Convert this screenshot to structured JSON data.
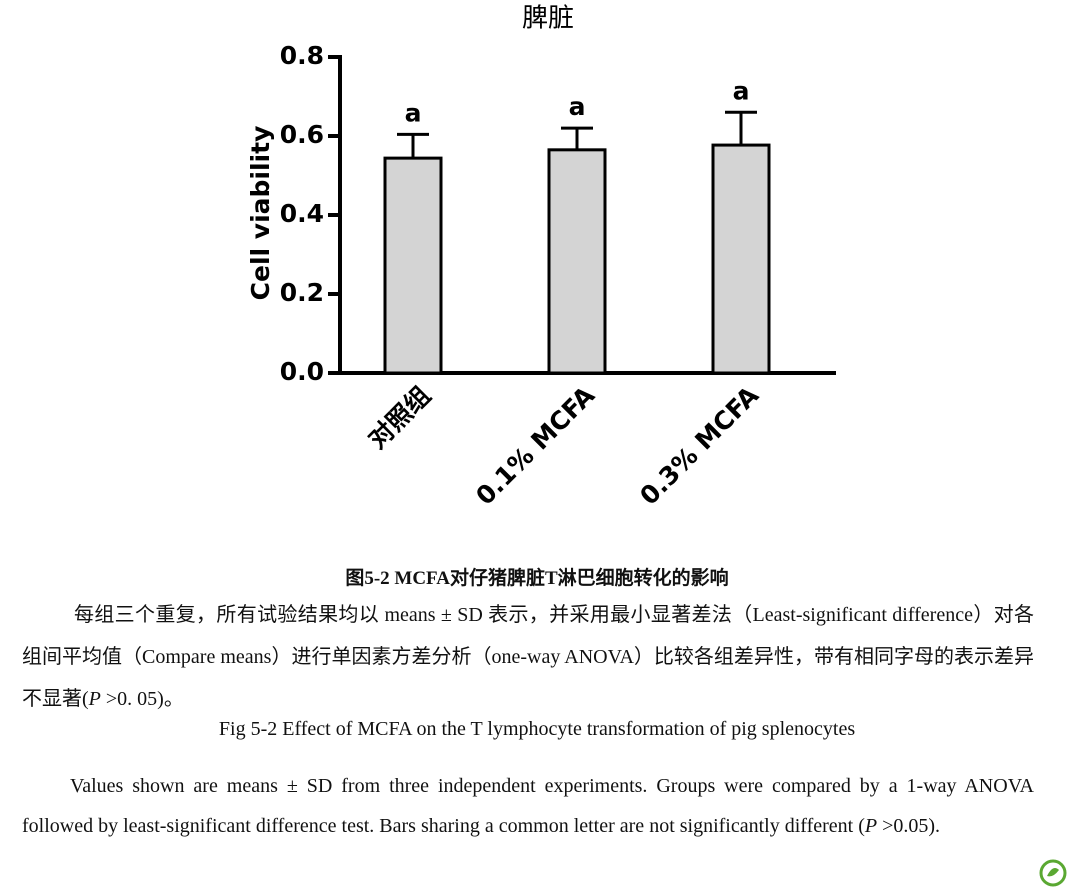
{
  "chart_data": {
    "type": "bar",
    "title": "脾脏",
    "ylabel": "Cell viability",
    "categories": [
      "对照组",
      "0.1% MCFA",
      "0.3% MCFA"
    ],
    "values": [
      0.544,
      0.565,
      0.577
    ],
    "errors": [
      0.06,
      0.055,
      0.083
    ],
    "letters": [
      "a",
      "a",
      "a"
    ],
    "color": "#d4d4d4",
    "ylim": [
      0,
      0.8
    ],
    "yticks": [
      {
        "value": 0,
        "label": "0.0"
      },
      0.2,
      0.4,
      0.6,
      0.8
    ]
  },
  "caption": {
    "cn_title": "图5-2 MCFA对仔猪脾脏T淋巴细胞转化的影响",
    "cn_note": [
      "每组三个重复，所有试验结果均以 means ± SD 表示，并采用最小显著差法（Least-significant difference）对各组间平均值（Compare means）进行单因素方差分析（one-way ANOVA）比较各组差异性，带有相同字母的表示差异不显著(",
      "P",
      " >0. 05)。"
    ],
    "en_title": "Fig 5-2 Effect of MCFA on the T lymphocyte transformation of pig splenocytes",
    "en_note": [
      "Values shown are means ± SD from three independent experiments. Groups were compared by a 1-way ANOVA followed by least-significant difference test. Bars sharing a common letter are not significantly different (",
      "P",
      " >0.05)."
    ]
  }
}
